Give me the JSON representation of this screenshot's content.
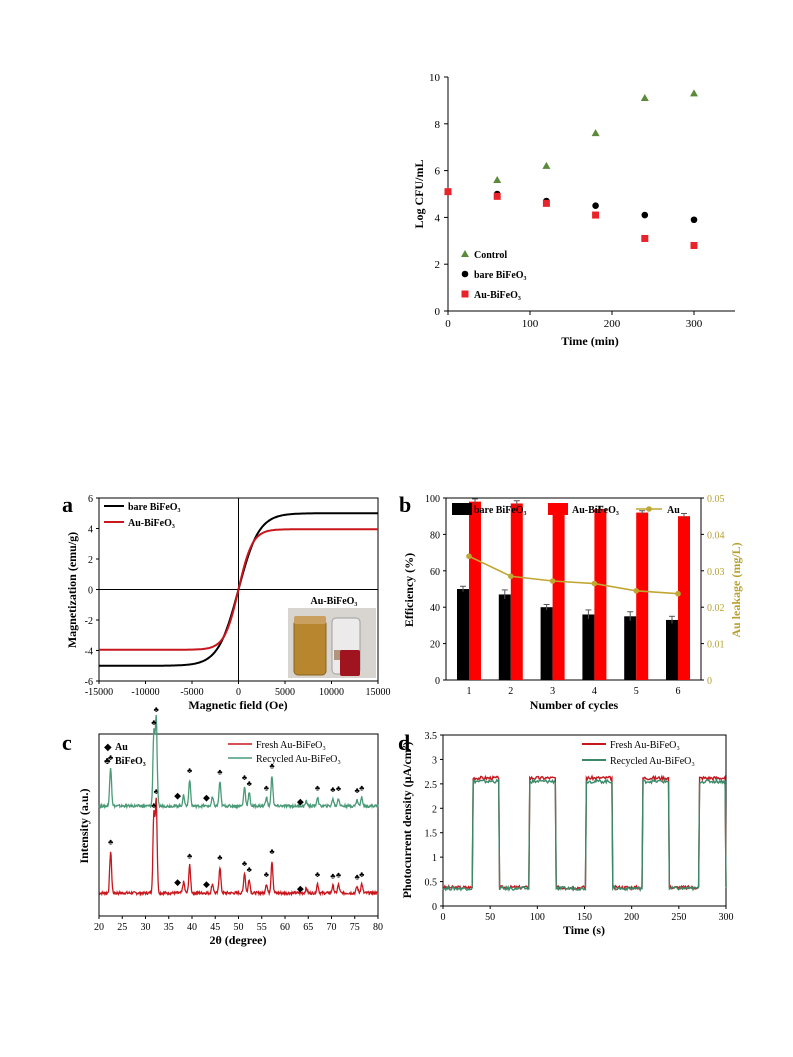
{
  "chart_data": [
    {
      "id": "top",
      "type": "scatter",
      "xlabel": "Time (min)",
      "ylabel": "Log CFU/mL",
      "xlim": [
        0,
        350
      ],
      "ylim": [
        0,
        10
      ],
      "xticks": [
        0,
        100,
        200,
        300
      ],
      "yticks": [
        0,
        2,
        4,
        6,
        8,
        10
      ],
      "legend_position": "bottom-left",
      "series": [
        {
          "name": "Control",
          "marker": "triangle",
          "color": "#5a8a3a",
          "x": [
            0,
            60,
            120,
            180,
            240,
            300
          ],
          "y": [
            5.1,
            5.6,
            6.2,
            7.6,
            9.1,
            9.3
          ]
        },
        {
          "name": "bare BiFeO₃",
          "marker": "circle",
          "color": "#000000",
          "x": [
            0,
            60,
            120,
            180,
            240,
            300
          ],
          "y": [
            5.1,
            5.0,
            4.7,
            4.5,
            4.1,
            3.9
          ]
        },
        {
          "name": "Au-BiFeO₃",
          "marker": "square",
          "color": "#e8232a",
          "x": [
            0,
            60,
            120,
            180,
            240,
            300
          ],
          "y": [
            5.1,
            4.9,
            4.6,
            4.1,
            3.1,
            2.8
          ]
        }
      ]
    },
    {
      "id": "a",
      "panel_label": "a",
      "type": "line",
      "xlabel": "Magnetic field (Oe)",
      "ylabel": "Magnetization (emu/g)",
      "xlim": [
        -15000,
        15000
      ],
      "ylim": [
        -6,
        6
      ],
      "xticks": [
        -15000,
        -10000,
        -5000,
        0,
        5000,
        10000,
        15000
      ],
      "yticks": [
        -6,
        -4,
        -2,
        0,
        2,
        4,
        6
      ],
      "legend_position": "top-left",
      "inset_label": "Au-BiFeO₃",
      "series": [
        {
          "name": "bare BiFeO₃",
          "color": "#000000",
          "ms": 5.0,
          "h0": 2200
        },
        {
          "name": "Au-BiFeO₃",
          "color": "#c8161d",
          "ms": 3.95,
          "h0": 1500
        }
      ]
    },
    {
      "id": "b",
      "panel_label": "b",
      "type": "bar",
      "xlabel": "Number of cycles",
      "ylabel": "Efficiency (%)",
      "ylabel_right": "Au leakage (mg/L)",
      "categories": [
        "1",
        "2",
        "3",
        "4",
        "5",
        "6"
      ],
      "ylim": [
        0,
        100
      ],
      "ylim_right": [
        0,
        0.05
      ],
      "yticks": [
        0,
        20,
        40,
        60,
        80,
        100
      ],
      "yticks_right": [
        "0",
        "0.01",
        "0.02",
        "0.03",
        "0.04",
        "0.05"
      ],
      "legend_position": "top",
      "series": [
        {
          "name": "bare BiFeO₃",
          "color": "#000000",
          "values": [
            50,
            47,
            40,
            36,
            35,
            33
          ],
          "errors": [
            1.5,
            2.5,
            1.5,
            2.5,
            2.5,
            2.0
          ]
        },
        {
          "name": "Au-BiFeO₃",
          "color": "#ff0000",
          "values": [
            98,
            97,
            95,
            94,
            92,
            90
          ],
          "errors": [
            1.5,
            1.5,
            1.5,
            1.5,
            1.0,
            1.5
          ]
        },
        {
          "name": "Au",
          "color": "#c2a632",
          "axis": "right",
          "values": [
            0.034,
            0.0285,
            0.0272,
            0.0265,
            0.0245,
            0.0237
          ]
        }
      ]
    },
    {
      "id": "c",
      "panel_label": "c",
      "type": "line",
      "xlabel": "2θ (degree)",
      "ylabel": "Intensity (a.u.)",
      "xlim": [
        20,
        80
      ],
      "xticks": [
        20,
        25,
        30,
        35,
        40,
        45,
        50,
        55,
        60,
        65,
        70,
        75,
        80
      ],
      "marker_legend": [
        {
          "symbol": "◆",
          "label": "Au"
        },
        {
          "symbol": "♣",
          "label": "BiFeO₃"
        }
      ],
      "series": [
        {
          "name": "Fresh Au-BiFeO₃",
          "color": "#c8161d"
        },
        {
          "name": "Recycled Au-BiFeO₃",
          "color": "#4a9a78"
        }
      ],
      "peaks": [
        {
          "x": 22.5,
          "h": 0.45,
          "type": "BiFeO3"
        },
        {
          "x": 31.8,
          "h": 0.85,
          "type": "BiFeO3"
        },
        {
          "x": 32.3,
          "h": 1.0,
          "type": "BiFeO3"
        },
        {
          "x": 38.2,
          "h": 0.12,
          "type": "Au"
        },
        {
          "x": 39.5,
          "h": 0.3,
          "type": "BiFeO3"
        },
        {
          "x": 44.4,
          "h": 0.1,
          "type": "Au"
        },
        {
          "x": 46.0,
          "h": 0.28,
          "type": "BiFeO3"
        },
        {
          "x": 51.3,
          "h": 0.22,
          "type": "BiFeO3"
        },
        {
          "x": 52.3,
          "h": 0.15,
          "type": "BiFeO3"
        },
        {
          "x": 56.0,
          "h": 0.1,
          "type": "BiFeO3"
        },
        {
          "x": 57.2,
          "h": 0.35,
          "type": "BiFeO3"
        },
        {
          "x": 64.6,
          "h": 0.05,
          "type": "Au"
        },
        {
          "x": 67.0,
          "h": 0.1,
          "type": "BiFeO3"
        },
        {
          "x": 70.3,
          "h": 0.08,
          "type": "BiFeO3"
        },
        {
          "x": 71.5,
          "h": 0.09,
          "type": "BiFeO3"
        },
        {
          "x": 75.5,
          "h": 0.07,
          "type": "BiFeO3"
        },
        {
          "x": 76.5,
          "h": 0.1,
          "type": "BiFeO3"
        }
      ]
    },
    {
      "id": "d",
      "panel_label": "d",
      "type": "line",
      "xlabel": "Time (s)",
      "ylabel": "Photocurrent density (μA/cm²)",
      "xlim": [
        0,
        300
      ],
      "ylim": [
        0,
        3.5
      ],
      "xticks": [
        0,
        50,
        100,
        150,
        200,
        250,
        300
      ],
      "yticks": [
        "0",
        "0.5",
        "1",
        "1.5",
        "2",
        "2.5",
        "3",
        "3.5"
      ],
      "legend_position": "top-right",
      "series": [
        {
          "name": "Fresh Au-BiFeO₃",
          "color": "#c8161d",
          "on": 2.62,
          "off": 0.38
        },
        {
          "name": "Recycled Au-BiFeO₃",
          "color": "#3a8a6a",
          "on": 2.55,
          "off": 0.36
        }
      ],
      "on_intervals": [
        [
          30,
          60
        ],
        [
          90,
          120
        ],
        [
          150,
          180
        ],
        [
          210,
          240
        ],
        [
          270,
          300
        ]
      ]
    }
  ]
}
